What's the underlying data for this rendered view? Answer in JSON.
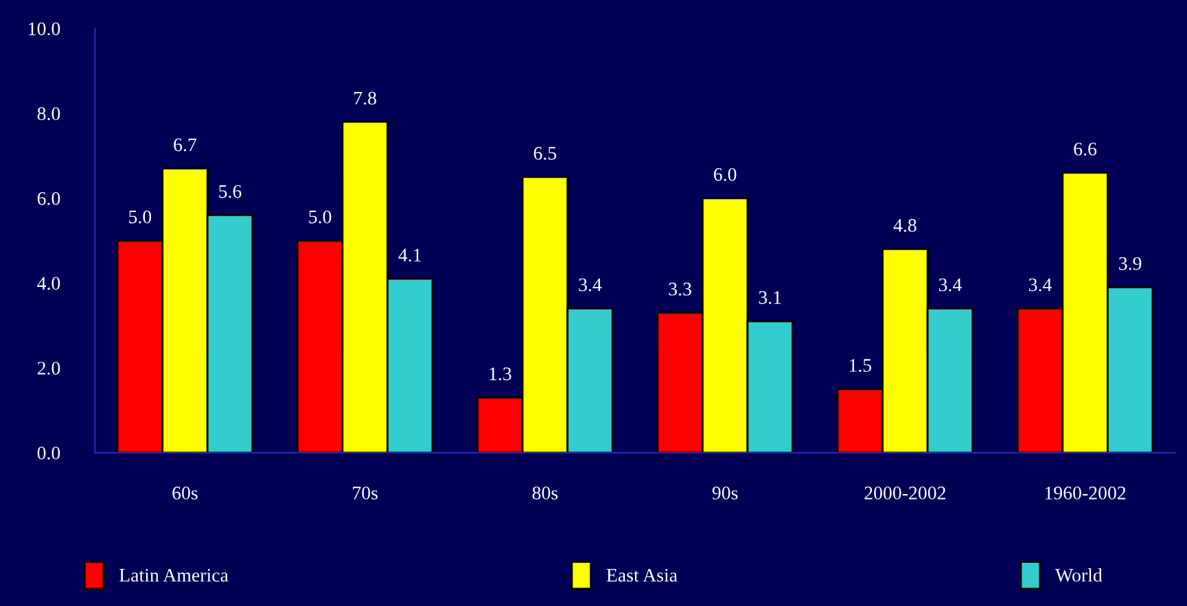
{
  "chart_data": {
    "type": "bar",
    "categories": [
      "60s",
      "70s",
      "80s",
      "90s",
      "2000-2002",
      "1960-2002"
    ],
    "series": [
      {
        "name": "Latin America",
        "color": "#ff0000",
        "values": [
          5.0,
          5.0,
          1.3,
          3.3,
          1.5,
          3.4
        ],
        "value_labels": [
          "5.0",
          "5.0",
          "1.3",
          "3.3",
          "1.5",
          "3.4"
        ]
      },
      {
        "name": "East Asia",
        "color": "#ffff00",
        "values": [
          6.7,
          7.8,
          6.5,
          6.0,
          4.8,
          6.6
        ],
        "value_labels": [
          "6.7",
          "7.8",
          "6.5",
          "6.0",
          "4.8",
          "6.6"
        ]
      },
      {
        "name": "World",
        "color": "#33cccc",
        "values": [
          5.6,
          4.1,
          3.4,
          3.1,
          3.4,
          3.9
        ],
        "value_labels": [
          "5.6",
          "4.1",
          "3.4",
          "3.1",
          "3.4",
          "3.9"
        ]
      }
    ],
    "ylim": [
      0,
      10
    ],
    "yticks": [
      {
        "value": 0,
        "label": "0.0"
      },
      {
        "value": 2,
        "label": "2.0"
      },
      {
        "value": 4,
        "label": "4.0"
      },
      {
        "value": 6,
        "label": "6.0"
      },
      {
        "value": 8,
        "label": "8.0"
      },
      {
        "value": 10,
        "label": "10.0"
      }
    ],
    "grid": false,
    "legend": "bottom"
  }
}
